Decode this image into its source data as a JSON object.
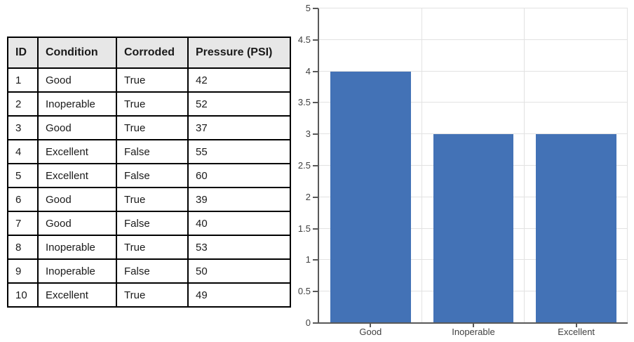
{
  "table": {
    "headers": [
      "ID",
      "Condition",
      "Corroded",
      "Pressure (PSI)"
    ],
    "rows": [
      [
        "1",
        "Good",
        "True",
        "42"
      ],
      [
        "2",
        "Inoperable",
        "True",
        "52"
      ],
      [
        "3",
        "Good",
        "True",
        "37"
      ],
      [
        "4",
        "Excellent",
        "False",
        "55"
      ],
      [
        "5",
        "Excellent",
        "False",
        "60"
      ],
      [
        "6",
        "Good",
        "True",
        "39"
      ],
      [
        "7",
        "Good",
        "False",
        "40"
      ],
      [
        "8",
        "Inoperable",
        "True",
        "53"
      ],
      [
        "9",
        "Inoperable",
        "False",
        "50"
      ],
      [
        "10",
        "Excellent",
        "True",
        "49"
      ]
    ],
    "header_bg": "#E7E7E7",
    "border_color": "#000000"
  },
  "chart_data": {
    "type": "bar",
    "categories": [
      "Good",
      "Inoperable",
      "Excellent"
    ],
    "values": [
      4,
      3,
      3
    ],
    "title": "",
    "xlabel": "",
    "ylabel": "",
    "ylim": [
      0,
      5
    ],
    "yticks": [
      0,
      0.5,
      1,
      1.5,
      2,
      2.5,
      3,
      3.5,
      4,
      4.5,
      5
    ],
    "ytick_labels": [
      "0",
      "0.5",
      "1",
      "1.5",
      "2",
      "2.5",
      "3",
      "3.5",
      "4",
      "4.5",
      "5"
    ],
    "bar_color": "#4372B6",
    "grid_color": "#E2E2E2",
    "axis_color": "#595959",
    "label_color": "#404040",
    "grid": true,
    "legend_position": "none",
    "bar_width_fraction": 0.78
  }
}
